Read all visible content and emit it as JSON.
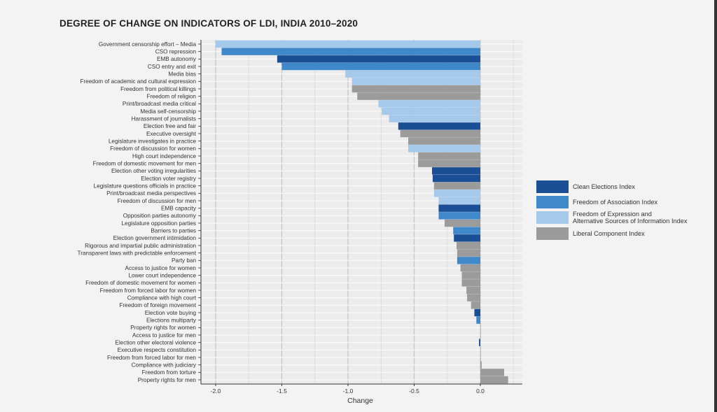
{
  "chart_data": {
    "type": "bar",
    "orientation": "horizontal",
    "title": "DEGREE OF CHANGE ON INDICATORS OF LDI, INDIA 2010–2020",
    "xlabel": "Change",
    "ylabel": "",
    "xlim": [
      -2.1,
      0.32
    ],
    "xticks": [
      -2.0,
      -1.5,
      -1.0,
      -0.5,
      0.0
    ],
    "xtick_labels": [
      "-2.0",
      "-1.5",
      "-1.0",
      "-0.5",
      "0.0"
    ],
    "grid": true,
    "legend_position": "right",
    "legend": [
      {
        "key": "CE",
        "label": "Clean Elections Index",
        "color": "#1a4f96"
      },
      {
        "key": "FA",
        "label": "Freedom of Association Index",
        "color": "#3f88c9"
      },
      {
        "key": "FE",
        "label": "Freedom of Expression and",
        "label2": "Alternative Sources of Information Index",
        "color": "#a4c9eb"
      },
      {
        "key": "LC",
        "label": "Liberal Component Index",
        "color": "#9b9b9b"
      }
    ],
    "categories": [
      "Government censorship effort – Media",
      "CSO repression",
      "EMB autonomy",
      "CSO entry and exit",
      "Media bias",
      "Freedom of academic and cultural expression",
      "Freedom from political killings",
      "Freedom of religion",
      "Print/broadcast media critical",
      "Media self-censorship",
      "Harassment of journalists",
      "Election free and fair",
      "Executive oversight",
      "Legislature investigates in practice",
      "Freedom of discussion for women",
      "High court independence",
      "Freedom of domestic movement for men",
      "Election other voting irregularities",
      "Election voter registry",
      "Legislature questions officials in practice",
      "Print/broadcast media perspectives",
      "Freedom of discussion for men",
      "EMB capacity",
      "Opposition parties autonomy",
      "Legislature opposition parties",
      "Barriers to parties",
      "Election government intimidation",
      "Rigorous and impartial public administration",
      "Transparent laws with predictable enforcement",
      "Party ban",
      "Access to justice for women",
      "Lower court independence",
      "Freedom of domestic movement for women",
      "Freedom from forced labor for women",
      "Compliance with high court",
      "Freedom of foreign movement",
      "Election vote buying",
      "Elections multiparty",
      "Property rights for women",
      "Access to justice for men",
      "Election other electoral violence",
      "Executive respects constitution",
      "Freedom from forced labor for men",
      "Compliance with judiciary",
      "Freedom from torture",
      "Property rights for men"
    ],
    "values": [
      -2.0,
      -1.955,
      -1.535,
      -1.5,
      -1.02,
      -0.97,
      -0.97,
      -0.93,
      -0.77,
      -0.745,
      -0.69,
      -0.62,
      -0.605,
      -0.545,
      -0.545,
      -0.47,
      -0.47,
      -0.365,
      -0.36,
      -0.35,
      -0.35,
      -0.315,
      -0.315,
      -0.315,
      -0.27,
      -0.205,
      -0.2,
      -0.18,
      -0.175,
      -0.175,
      -0.15,
      -0.14,
      -0.14,
      -0.105,
      -0.1,
      -0.07,
      -0.045,
      -0.03,
      0.0,
      0.0,
      -0.01,
      0.0,
      0.0,
      0.01,
      0.18,
      0.21
    ],
    "groups": [
      "FE",
      "FA",
      "CE",
      "FA",
      "FE",
      "FE",
      "LC",
      "LC",
      "FE",
      "FE",
      "FE",
      "CE",
      "LC",
      "LC",
      "FE",
      "LC",
      "LC",
      "CE",
      "CE",
      "LC",
      "FE",
      "FE",
      "CE",
      "FA",
      "LC",
      "FA",
      "CE",
      "LC",
      "LC",
      "FA",
      "LC",
      "LC",
      "LC",
      "LC",
      "LC",
      "LC",
      "CE",
      "FA",
      "LC",
      "LC",
      "CE",
      "LC",
      "LC",
      "LC",
      "LC",
      "LC"
    ]
  }
}
